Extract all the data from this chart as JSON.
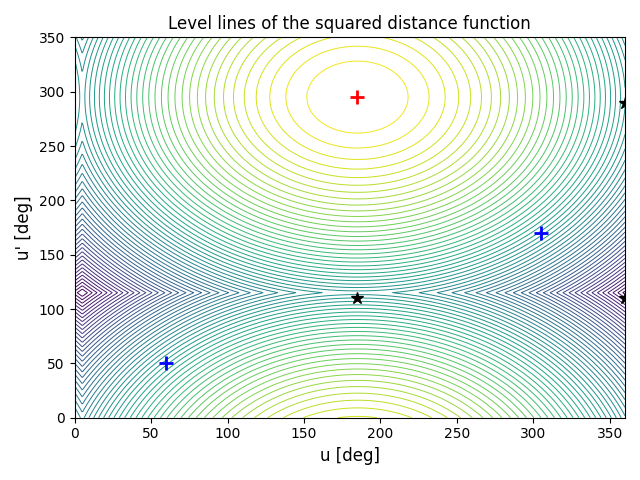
{
  "title": "Level lines of the squared distance function",
  "xlabel": "u [deg]",
  "ylabel": "u' [deg]",
  "xlim": [
    0,
    360
  ],
  "ylim": [
    0,
    350
  ],
  "xticks": [
    0,
    50,
    100,
    150,
    200,
    250,
    300,
    350
  ],
  "yticks": [
    0,
    50,
    100,
    150,
    200,
    250,
    300,
    350
  ],
  "colormap": "viridis",
  "n_levels": 60,
  "minimum_u": 185,
  "minimum_uprime": 295,
  "red_plus": [
    185,
    295
  ],
  "blue_plus_1": [
    60,
    50
  ],
  "blue_plus_2": [
    305,
    170
  ],
  "black_star_1": [
    185,
    110
  ],
  "black_star_2": [
    360,
    290
  ],
  "black_star_3": [
    360,
    110
  ],
  "figsize": [
    6.4,
    4.8
  ],
  "dpi": 100,
  "bg_color": "white"
}
